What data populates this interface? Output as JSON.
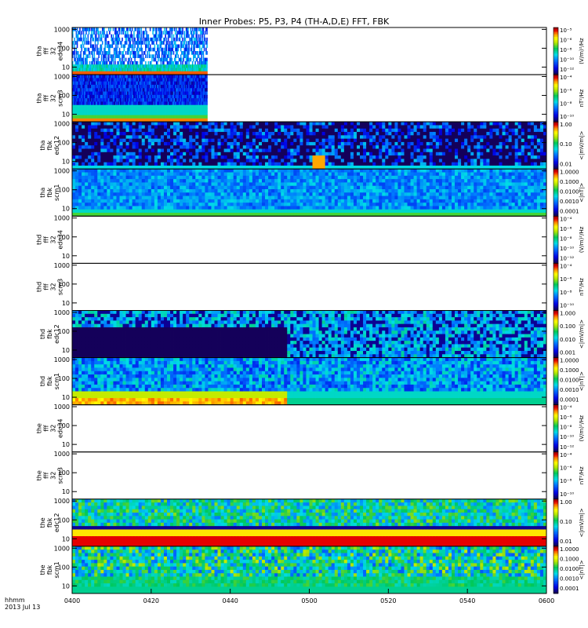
{
  "title": "Inner Probes: P5, P3, P4 (TH-A,D,E) FFT, FBK",
  "footer": {
    "line1": "hhmm",
    "line2": "2013 Jul 13"
  },
  "chart_data": {
    "type": "heatmap",
    "x_unit": "hhmm",
    "x_ticks": [
      "0400",
      "0420",
      "0440",
      "0500",
      "0520",
      "0540",
      "0600"
    ],
    "x_range": [
      "04:00",
      "06:00"
    ],
    "y_ticks": [
      "1000",
      "100",
      "10"
    ],
    "y_scale": "log",
    "panels": [
      {
        "name": "tha_fff_32_edc34",
        "label": [
          "tha",
          "fff",
          "32",
          "edc34"
        ],
        "cb_unit": "(V/m)²/Hz",
        "cb_ticks": [
          "10⁻⁵",
          "10⁻⁶",
          "10⁻⁸",
          "10⁻¹⁰",
          "10⁻¹²"
        ],
        "cb_palette": "a",
        "data_coverage": [
          0.0,
          0.285
        ],
        "style": "sparse-spikes"
      },
      {
        "name": "tha_fff_32_scm3",
        "label": [
          "tha",
          "fff",
          "32",
          "scm3"
        ],
        "cb_unit": "nT²/Hz",
        "cb_ticks": [
          "10⁻⁴",
          "10⁻⁶",
          "10⁻⁸",
          "10⁻¹⁰"
        ],
        "cb_palette": "a",
        "data_coverage": [
          0.0,
          0.285
        ],
        "style": "bands"
      },
      {
        "name": "tha_fbk_edc12",
        "label": [
          "tha",
          "fbk",
          "edc12"
        ],
        "cb_unit": "<|mV/m|>",
        "cb_ticks": [
          "1.00",
          "0.10",
          "0.01"
        ],
        "cb_palette": "a",
        "data_coverage": [
          0.0,
          1.0
        ],
        "style": "dark-noise"
      },
      {
        "name": "tha_fbk_scm1",
        "label": [
          "tha",
          "fbk",
          "scm1"
        ],
        "cb_unit": "<|nT|>",
        "cb_ticks": [
          "1.0000",
          "0.1000",
          "0.0100",
          "0.0010",
          "0.0001"
        ],
        "cb_palette": "a",
        "data_coverage": [
          0.0,
          1.0
        ],
        "style": "blue-bands"
      },
      {
        "name": "thd_fff_32_edc34",
        "label": [
          "thd",
          "fff",
          "32",
          "edc34"
        ],
        "cb_unit": "(V/m)²/Hz",
        "cb_ticks": [
          "10⁻⁴",
          "10⁻⁶",
          "10⁻⁸",
          "10⁻¹⁰",
          "10⁻¹²"
        ],
        "cb_palette": "a",
        "data_coverage": null,
        "style": "empty"
      },
      {
        "name": "thd_fff_32_scm3",
        "label": [
          "thd",
          "fff",
          "32",
          "scm3"
        ],
        "cb_unit": "nT²/Hz",
        "cb_ticks": [
          "10⁻⁴",
          "10⁻⁶",
          "10⁻⁸",
          "10⁻¹⁰"
        ],
        "cb_palette": "a",
        "data_coverage": null,
        "style": "empty"
      },
      {
        "name": "thd_fbk_edc12",
        "label": [
          "thd",
          "fbk",
          "edc12"
        ],
        "cb_unit": "<|mV/m|>",
        "cb_ticks": [
          "1.000",
          "0.100",
          "0.010",
          "0.001"
        ],
        "cb_palette": "a",
        "data_coverage": [
          0.0,
          1.0
        ],
        "style": "black-lower"
      },
      {
        "name": "thd_fbk_scm1",
        "label": [
          "thd",
          "fbk",
          "scm1"
        ],
        "cb_unit": "<|nT|>",
        "cb_ticks": [
          "1.0000",
          "0.1000",
          "0.0100",
          "0.0010",
          "0.0001"
        ],
        "cb_palette": "a",
        "data_coverage": [
          0.0,
          1.0
        ],
        "style": "warm-lower"
      },
      {
        "name": "the_fff_32_edc34",
        "label": [
          "the",
          "fff",
          "32",
          "edc34"
        ],
        "cb_unit": "(V/m)²/Hz",
        "cb_ticks": [
          "10⁻⁴",
          "10⁻⁶",
          "10⁻⁸",
          "10⁻¹⁰",
          "10⁻¹²"
        ],
        "cb_palette": "a",
        "data_coverage": null,
        "style": "empty"
      },
      {
        "name": "the_fff_32_scm3",
        "label": [
          "the",
          "fff",
          "32",
          "scm3"
        ],
        "cb_unit": "nT²/Hz",
        "cb_ticks": [
          "10⁻⁴",
          "10⁻⁶",
          "10⁻⁸",
          "10⁻¹⁰"
        ],
        "cb_palette": "a",
        "data_coverage": null,
        "style": "empty"
      },
      {
        "name": "the_fbk_edc12",
        "label": [
          "the",
          "fbk",
          "edc12"
        ],
        "cb_unit": "<|mV/m|>",
        "cb_ticks": [
          "1.00",
          "0.10",
          "0.01"
        ],
        "cb_palette": "a",
        "data_coverage": [
          0.0,
          1.0
        ],
        "style": "red-lower"
      },
      {
        "name": "the_fbk_scm1",
        "label": [
          "the",
          "fbk",
          "scm1"
        ],
        "cb_unit": "<|nT|>",
        "cb_ticks": [
          "1.0000",
          "0.1000",
          "0.0100",
          "0.0010",
          "0.0001"
        ],
        "cb_palette": "a",
        "data_coverage": [
          0.0,
          1.0
        ],
        "style": "cyan-yellow"
      }
    ]
  }
}
